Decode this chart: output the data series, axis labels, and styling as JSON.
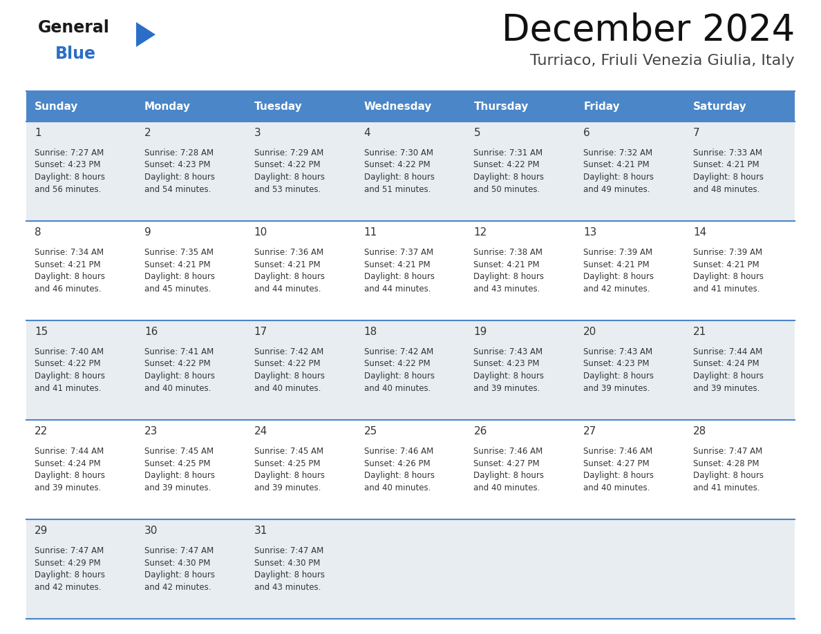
{
  "title": "December 2024",
  "subtitle": "Turriaco, Friuli Venezia Giulia, Italy",
  "days_of_week": [
    "Sunday",
    "Monday",
    "Tuesday",
    "Wednesday",
    "Thursday",
    "Friday",
    "Saturday"
  ],
  "header_bg": "#4a86c8",
  "header_text": "#ffffff",
  "row_bg_odd": "#e8edf2",
  "row_bg_even": "#ffffff",
  "border_color": "#4a86c8",
  "day_num_color": "#333333",
  "cell_text_color": "#333333",
  "calendar": [
    [
      {
        "day": 1,
        "sunrise": "7:27 AM",
        "sunset": "4:23 PM",
        "daylight": "8 hours and 56 minutes"
      },
      {
        "day": 2,
        "sunrise": "7:28 AM",
        "sunset": "4:23 PM",
        "daylight": "8 hours and 54 minutes"
      },
      {
        "day": 3,
        "sunrise": "7:29 AM",
        "sunset": "4:22 PM",
        "daylight": "8 hours and 53 minutes"
      },
      {
        "day": 4,
        "sunrise": "7:30 AM",
        "sunset": "4:22 PM",
        "daylight": "8 hours and 51 minutes"
      },
      {
        "day": 5,
        "sunrise": "7:31 AM",
        "sunset": "4:22 PM",
        "daylight": "8 hours and 50 minutes"
      },
      {
        "day": 6,
        "sunrise": "7:32 AM",
        "sunset": "4:21 PM",
        "daylight": "8 hours and 49 minutes"
      },
      {
        "day": 7,
        "sunrise": "7:33 AM",
        "sunset": "4:21 PM",
        "daylight": "8 hours and 48 minutes"
      }
    ],
    [
      {
        "day": 8,
        "sunrise": "7:34 AM",
        "sunset": "4:21 PM",
        "daylight": "8 hours and 46 minutes"
      },
      {
        "day": 9,
        "sunrise": "7:35 AM",
        "sunset": "4:21 PM",
        "daylight": "8 hours and 45 minutes"
      },
      {
        "day": 10,
        "sunrise": "7:36 AM",
        "sunset": "4:21 PM",
        "daylight": "8 hours and 44 minutes"
      },
      {
        "day": 11,
        "sunrise": "7:37 AM",
        "sunset": "4:21 PM",
        "daylight": "8 hours and 44 minutes"
      },
      {
        "day": 12,
        "sunrise": "7:38 AM",
        "sunset": "4:21 PM",
        "daylight": "8 hours and 43 minutes"
      },
      {
        "day": 13,
        "sunrise": "7:39 AM",
        "sunset": "4:21 PM",
        "daylight": "8 hours and 42 minutes"
      },
      {
        "day": 14,
        "sunrise": "7:39 AM",
        "sunset": "4:21 PM",
        "daylight": "8 hours and 41 minutes"
      }
    ],
    [
      {
        "day": 15,
        "sunrise": "7:40 AM",
        "sunset": "4:22 PM",
        "daylight": "8 hours and 41 minutes"
      },
      {
        "day": 16,
        "sunrise": "7:41 AM",
        "sunset": "4:22 PM",
        "daylight": "8 hours and 40 minutes"
      },
      {
        "day": 17,
        "sunrise": "7:42 AM",
        "sunset": "4:22 PM",
        "daylight": "8 hours and 40 minutes"
      },
      {
        "day": 18,
        "sunrise": "7:42 AM",
        "sunset": "4:22 PM",
        "daylight": "8 hours and 40 minutes"
      },
      {
        "day": 19,
        "sunrise": "7:43 AM",
        "sunset": "4:23 PM",
        "daylight": "8 hours and 39 minutes"
      },
      {
        "day": 20,
        "sunrise": "7:43 AM",
        "sunset": "4:23 PM",
        "daylight": "8 hours and 39 minutes"
      },
      {
        "day": 21,
        "sunrise": "7:44 AM",
        "sunset": "4:24 PM",
        "daylight": "8 hours and 39 minutes"
      }
    ],
    [
      {
        "day": 22,
        "sunrise": "7:44 AM",
        "sunset": "4:24 PM",
        "daylight": "8 hours and 39 minutes"
      },
      {
        "day": 23,
        "sunrise": "7:45 AM",
        "sunset": "4:25 PM",
        "daylight": "8 hours and 39 minutes"
      },
      {
        "day": 24,
        "sunrise": "7:45 AM",
        "sunset": "4:25 PM",
        "daylight": "8 hours and 39 minutes"
      },
      {
        "day": 25,
        "sunrise": "7:46 AM",
        "sunset": "4:26 PM",
        "daylight": "8 hours and 40 minutes"
      },
      {
        "day": 26,
        "sunrise": "7:46 AM",
        "sunset": "4:27 PM",
        "daylight": "8 hours and 40 minutes"
      },
      {
        "day": 27,
        "sunrise": "7:46 AM",
        "sunset": "4:27 PM",
        "daylight": "8 hours and 40 minutes"
      },
      {
        "day": 28,
        "sunrise": "7:47 AM",
        "sunset": "4:28 PM",
        "daylight": "8 hours and 41 minutes"
      }
    ],
    [
      {
        "day": 29,
        "sunrise": "7:47 AM",
        "sunset": "4:29 PM",
        "daylight": "8 hours and 42 minutes"
      },
      {
        "day": 30,
        "sunrise": "7:47 AM",
        "sunset": "4:30 PM",
        "daylight": "8 hours and 42 minutes"
      },
      {
        "day": 31,
        "sunrise": "7:47 AM",
        "sunset": "4:30 PM",
        "daylight": "8 hours and 43 minutes"
      },
      null,
      null,
      null,
      null
    ]
  ],
  "logo_general_color": "#1a1a1a",
  "logo_blue_color": "#2b6ec8",
  "logo_triangle_color": "#2b6ec8",
  "fig_width": 11.88,
  "fig_height": 9.18,
  "dpi": 100
}
